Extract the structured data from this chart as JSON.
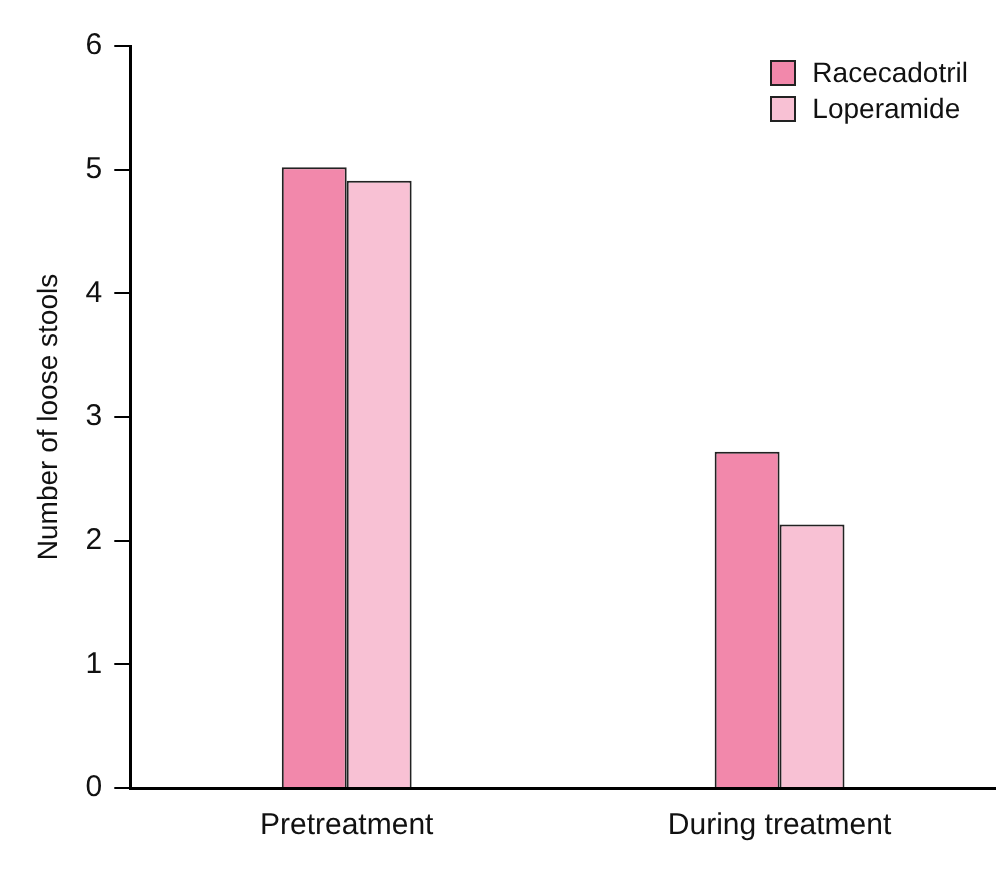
{
  "chart_data": {
    "type": "bar",
    "ylabel": "Number of loose stools",
    "categories": [
      "Pretreatment",
      "During treatment"
    ],
    "series": [
      {
        "name": "Racecadotril",
        "color": "#f288ab",
        "values": [
          5.02,
          2.72
        ]
      },
      {
        "name": "Loperamide",
        "color": "#f8c1d4",
        "values": [
          4.91,
          2.13
        ]
      }
    ],
    "ylim": [
      0,
      6
    ],
    "yticks": [
      0,
      1,
      2,
      3,
      4,
      5,
      6
    ],
    "grid": false,
    "legend": "top right"
  }
}
